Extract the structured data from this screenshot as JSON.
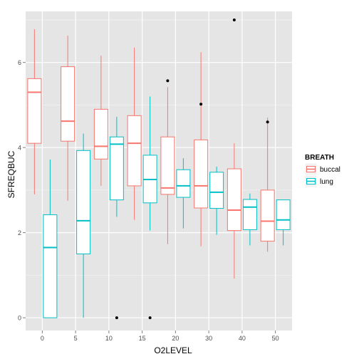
{
  "chart_data": {
    "type": "boxplot",
    "xlabel": "O2LEVEL",
    "ylabel": "SFREQBUC",
    "categories": [
      "0",
      "5",
      "10",
      "15",
      "20",
      "30",
      "40",
      "50"
    ],
    "ylim": [
      -0.3,
      7.2
    ],
    "y_ticks": [
      0,
      2,
      4,
      6
    ],
    "legend": {
      "title": "BREATH",
      "placement": "right",
      "entries": [
        "buccal",
        "lung"
      ]
    },
    "colors": {
      "buccal": "#F8766D",
      "lung": "#00BFC4",
      "panel": "#E5E5E5",
      "grid": "#FFFFFF",
      "outlier": "#000000"
    },
    "series": [
      {
        "name": "buccal",
        "boxes": [
          {
            "category": "0",
            "whisker_low": 2.9,
            "q1": 4.1,
            "median": 5.3,
            "q3": 5.62,
            "whisker_high": 6.78,
            "outliers": []
          },
          {
            "category": "5",
            "whisker_low": 2.75,
            "q1": 4.15,
            "median": 4.62,
            "q3": 5.9,
            "whisker_high": 6.63,
            "outliers": []
          },
          {
            "category": "10",
            "whisker_low": 3.1,
            "q1": 3.73,
            "median": 4.03,
            "q3": 4.9,
            "whisker_high": 6.16,
            "outliers": []
          },
          {
            "category": "15",
            "whisker_low": 2.3,
            "q1": 3.1,
            "median": 4.1,
            "q3": 4.75,
            "whisker_high": 6.35,
            "outliers": []
          },
          {
            "category": "20",
            "whisker_low": 1.73,
            "q1": 2.9,
            "median": 3.05,
            "q3": 4.25,
            "whisker_high": 5.42,
            "outliers": [
              5.57
            ]
          },
          {
            "category": "30",
            "whisker_low": 1.68,
            "q1": 2.58,
            "median": 3.1,
            "q3": 4.18,
            "whisker_high": 6.24,
            "outliers": [
              5.02
            ]
          },
          {
            "category": "40",
            "whisker_low": 0.92,
            "q1": 2.05,
            "median": 2.53,
            "q3": 3.5,
            "whisker_high": 4.1,
            "outliers": [
              7.0
            ]
          },
          {
            "category": "50",
            "whisker_low": 1.55,
            "q1": 1.8,
            "median": 2.27,
            "q3": 3.0,
            "whisker_high": 4.7,
            "outliers": [
              4.6
            ]
          }
        ]
      },
      {
        "name": "lung",
        "boxes": [
          {
            "category": "0",
            "whisker_low": 0.0,
            "q1": 0.0,
            "median": 1.65,
            "q3": 2.42,
            "whisker_high": 3.72,
            "outliers": []
          },
          {
            "category": "5",
            "whisker_low": 0.0,
            "q1": 1.5,
            "median": 2.28,
            "q3": 3.93,
            "whisker_high": 4.33,
            "outliers": []
          },
          {
            "category": "10",
            "whisker_low": 2.37,
            "q1": 2.77,
            "median": 4.08,
            "q3": 4.25,
            "whisker_high": 4.72,
            "outliers": [
              0.0
            ]
          },
          {
            "category": "15",
            "whisker_low": 2.05,
            "q1": 2.7,
            "median": 3.25,
            "q3": 3.82,
            "whisker_high": 5.2,
            "outliers": [
              0.0
            ]
          },
          {
            "category": "20",
            "whisker_low": 2.1,
            "q1": 2.83,
            "median": 3.1,
            "q3": 3.48,
            "whisker_high": 3.75,
            "outliers": []
          },
          {
            "category": "30",
            "whisker_low": 1.95,
            "q1": 2.57,
            "median": 2.95,
            "q3": 3.42,
            "whisker_high": 3.55,
            "outliers": []
          },
          {
            "category": "40",
            "whisker_low": 1.7,
            "q1": 2.07,
            "median": 2.6,
            "q3": 2.78,
            "whisker_high": 2.92,
            "outliers": []
          },
          {
            "category": "50",
            "whisker_low": 1.7,
            "q1": 2.07,
            "median": 2.3,
            "q3": 2.77,
            "whisker_high": 2.77,
            "outliers": []
          }
        ]
      }
    ]
  }
}
